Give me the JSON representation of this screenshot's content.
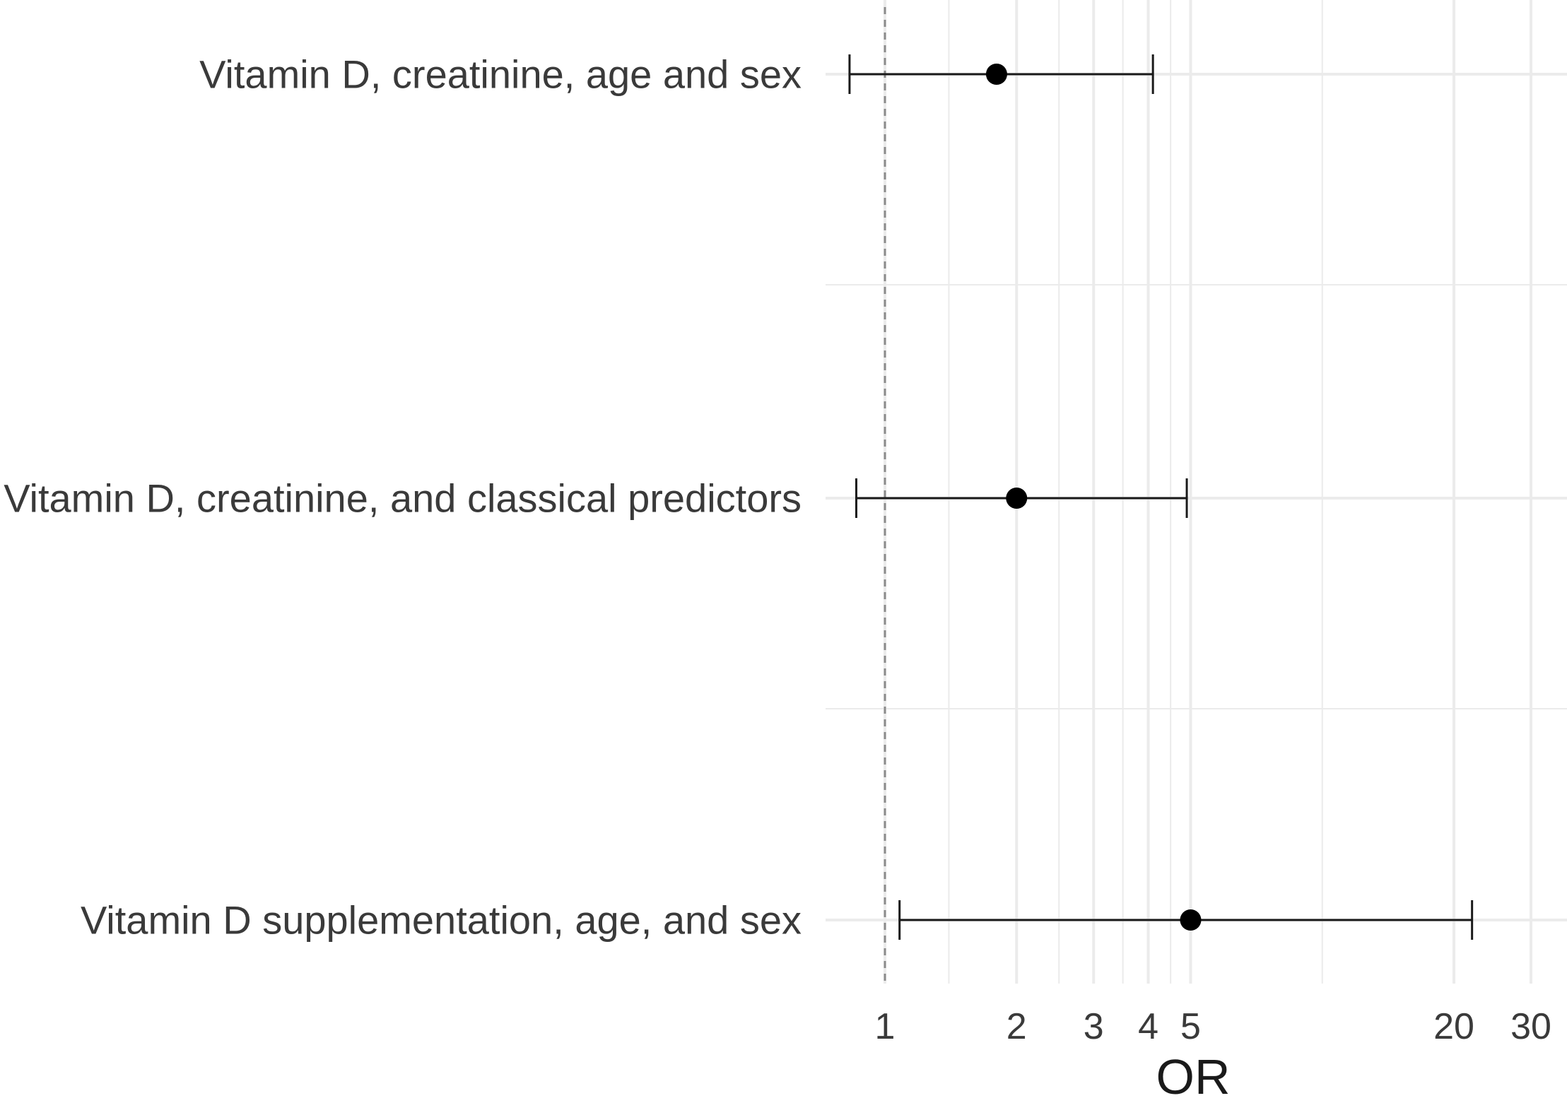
{
  "chart_data": {
    "type": "scatter",
    "subtype": "forest-plot",
    "title": "",
    "xlabel": "OR",
    "ylabel": "",
    "x_scale": "log",
    "xlim": [
      0.75,
      31
    ],
    "reference_line": 1,
    "reference_line_style": "dashed",
    "grid": true,
    "x_major_ticks": [
      1,
      2,
      3,
      4,
      5,
      20,
      30
    ],
    "x_tick_labels": [
      "1",
      "2",
      "3",
      "4",
      "5",
      "20",
      "30"
    ],
    "x_minor_gridlines": [
      1.4,
      2.5,
      3.5,
      4.5,
      10
    ],
    "rows": [
      {
        "label": "Vitamin D, creatinine, age and sex",
        "or": 1.8,
        "ci_low": 0.83,
        "ci_high": 4.1
      },
      {
        "label": "Vitamin D, creatinine, and classical predictors",
        "or": 2.0,
        "ci_low": 0.86,
        "ci_high": 4.9
      },
      {
        "label": "Vitamin D supplementation, age, and sex",
        "or": 5.0,
        "ci_low": 1.08,
        "ci_high": 22.0
      }
    ],
    "colors": {
      "point": "#000000",
      "errorbar": "#1a1a1a",
      "grid": "#ebebeb",
      "reference": "#8c8c8c",
      "text": "#3a3a3a"
    }
  }
}
